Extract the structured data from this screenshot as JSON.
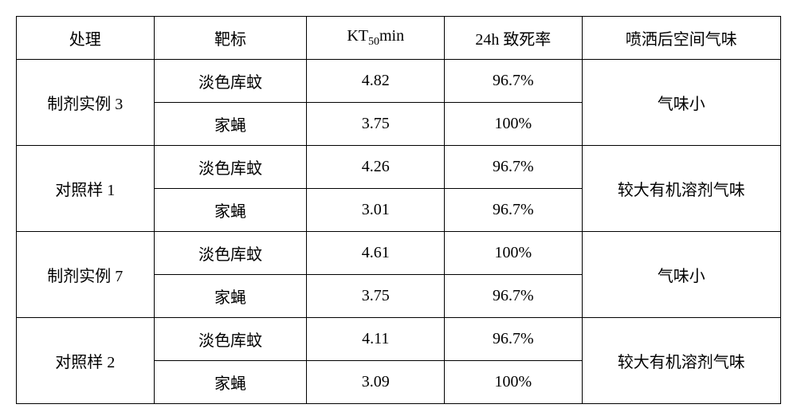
{
  "table": {
    "columns": [
      {
        "label": "处理",
        "width": "18%"
      },
      {
        "label_html": "靶标",
        "width": "20%"
      },
      {
        "label_html": "KT50min",
        "width": "18%"
      },
      {
        "label_html": "24h 致死率",
        "width": "18%"
      },
      {
        "label": "喷洒后空间气味",
        "width": "26%"
      }
    ],
    "headers": {
      "treatment": "处理",
      "target": "靶标",
      "kt50_prefix": "KT",
      "kt50_sub": "50",
      "kt50_suffix": "min",
      "mortality": "24h 致死率",
      "odor": "喷洒后空间气味"
    },
    "groups": [
      {
        "treatment": "制剂实例 3",
        "odor": "气味小",
        "rows": [
          {
            "target": "淡色库蚊",
            "kt50": "4.82",
            "mortality": "96.7%"
          },
          {
            "target": "家蝇",
            "kt50": "3.75",
            "mortality": "100%"
          }
        ]
      },
      {
        "treatment": "对照样 1",
        "odor": "较大有机溶剂气味",
        "rows": [
          {
            "target": "淡色库蚊",
            "kt50": "4.26",
            "mortality": "96.7%"
          },
          {
            "target": "家蝇",
            "kt50": "3.01",
            "mortality": "96.7%"
          }
        ]
      },
      {
        "treatment": "制剂实例 7",
        "odor": "气味小",
        "rows": [
          {
            "target": "淡色库蚊",
            "kt50": "4.61",
            "mortality": "100%"
          },
          {
            "target": "家蝇",
            "kt50": "3.75",
            "mortality": "96.7%"
          }
        ]
      },
      {
        "treatment": "对照样 2",
        "odor": "较大有机溶剂气味",
        "rows": [
          {
            "target": "淡色库蚊",
            "kt50": "4.11",
            "mortality": "96.7%"
          },
          {
            "target": "家蝇",
            "kt50": "3.09",
            "mortality": "100%"
          }
        ]
      }
    ]
  }
}
